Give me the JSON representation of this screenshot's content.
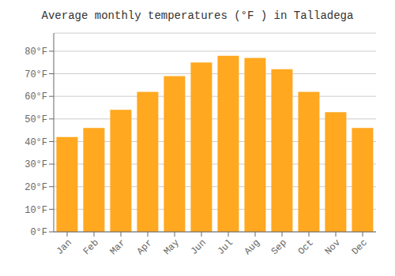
{
  "chart_data": {
    "type": "bar",
    "title": "Average monthly temperatures (°F ) in Talladega",
    "categories": [
      "Jan",
      "Feb",
      "Mar",
      "Apr",
      "May",
      "Jun",
      "Jul",
      "Aug",
      "Sep",
      "Oct",
      "Nov",
      "Dec"
    ],
    "values": [
      42,
      46,
      54,
      62,
      69,
      75,
      78,
      77,
      72,
      62,
      53,
      46
    ],
    "color": "#FFA820",
    "ylim": [
      0,
      88
    ],
    "yticks": [
      {
        "value": 0,
        "label": "0°F"
      },
      {
        "value": 10,
        "label": "10°F"
      },
      {
        "value": 20,
        "label": "20°F"
      },
      {
        "value": 30,
        "label": "30°F"
      },
      {
        "value": 40,
        "label": "40°F"
      },
      {
        "value": 50,
        "label": "50°F"
      },
      {
        "value": 60,
        "label": "60°F"
      },
      {
        "value": 70,
        "label": "70°F"
      },
      {
        "value": 80,
        "label": "80°F"
      }
    ],
    "grid": true
  }
}
